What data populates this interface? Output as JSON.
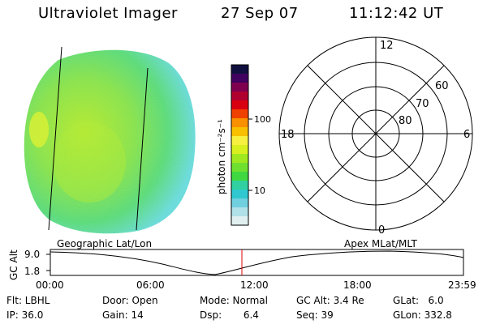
{
  "header": {
    "title": "Ultraviolet Imager",
    "date": "27 Sep 07",
    "time": "11:12:42 UT"
  },
  "colorbar": {
    "unit_label": "photon cm⁻²s⁻¹",
    "ticks": [
      "100",
      "10"
    ],
    "colors": [
      "#101040",
      "#400060",
      "#800050",
      "#b00030",
      "#d80010",
      "#f04000",
      "#f89000",
      "#f8c000",
      "#f8f040",
      "#d8f020",
      "#a0e820",
      "#70e030",
      "#40d840",
      "#30d0a0",
      "#30c8d0",
      "#70d0e0",
      "#b0e0e8",
      "#e0f0f0"
    ]
  },
  "polar": {
    "mlt_labels": [
      "12",
      "18",
      "6",
      "0"
    ],
    "mlat_labels": [
      "60",
      "70",
      "80"
    ]
  },
  "timeline": {
    "left_label": "Geographic Lat/Lon",
    "right_label": "Apex MLat/MLT",
    "axis_label": "GC Alt",
    "y_ticks": [
      "9.0",
      "1.8"
    ],
    "x_ticks": [
      "00:00",
      "06:00",
      "12:00",
      "18:00",
      "23:59"
    ],
    "marker_color": "#e00000"
  },
  "info": {
    "row1": {
      "flt": "Flt: LBHL",
      "door": "Door: Open",
      "mode": "Mode: Normal",
      "gc_alt": "GC Alt: 3.4 Re",
      "glat": "GLat:   6.0"
    },
    "row2": {
      "ip": "IP: 36.0",
      "gain": "Gain: 14",
      "dsp": "Dsp:       6.4",
      "seq": "Seq: 39",
      "glon": "GLon: 332.8"
    }
  }
}
